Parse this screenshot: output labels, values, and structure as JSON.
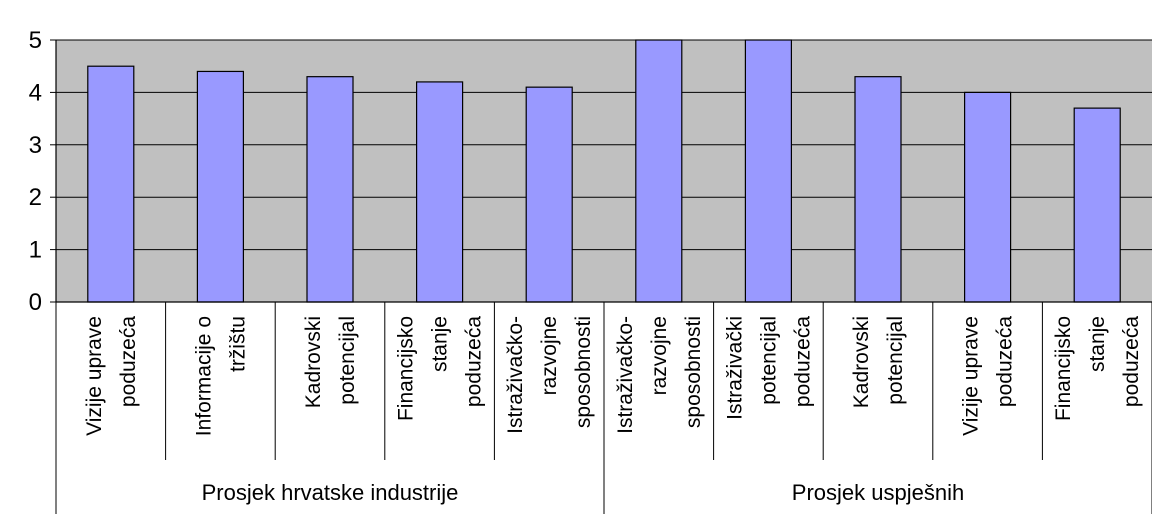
{
  "chart_data": {
    "type": "bar",
    "title": "",
    "xlabel": "",
    "ylabel": "",
    "ylim": [
      0,
      5
    ],
    "yticks": [
      0,
      1,
      2,
      3,
      4,
      5
    ],
    "grid": true,
    "groups": [
      {
        "name": "Prosjek hrvatske industrije",
        "categories": [
          [
            "Vizije uprave",
            "poduzeća"
          ],
          [
            "Informacije o",
            "tržištu"
          ],
          [
            "Kadrovski",
            "potencijal"
          ],
          [
            "Financijsko",
            "stanje",
            "poduzeća"
          ],
          [
            "Istraživačko-",
            "razvojne",
            "sposobnosti"
          ]
        ],
        "values": [
          4.5,
          4.4,
          4.3,
          4.2,
          4.1
        ]
      },
      {
        "name": "Prosjek uspješnih",
        "categories": [
          [
            "Istraživačko-",
            "razvojne",
            "sposobnosti"
          ],
          [
            "Istraživački",
            "potencijal",
            "poduzeća"
          ],
          [
            "Kadrovski",
            "potencijal"
          ],
          [
            "Vizije uprave",
            "poduzeća"
          ],
          [
            "Financijsko",
            "stanje",
            "poduzeća"
          ]
        ],
        "values": [
          5.0,
          5.0,
          4.3,
          4.0,
          3.7
        ]
      }
    ],
    "colors": {
      "bar": "#9999ff",
      "plot_bg": "#c0c0c0",
      "grid": "#000000",
      "axis": "#000000"
    }
  }
}
